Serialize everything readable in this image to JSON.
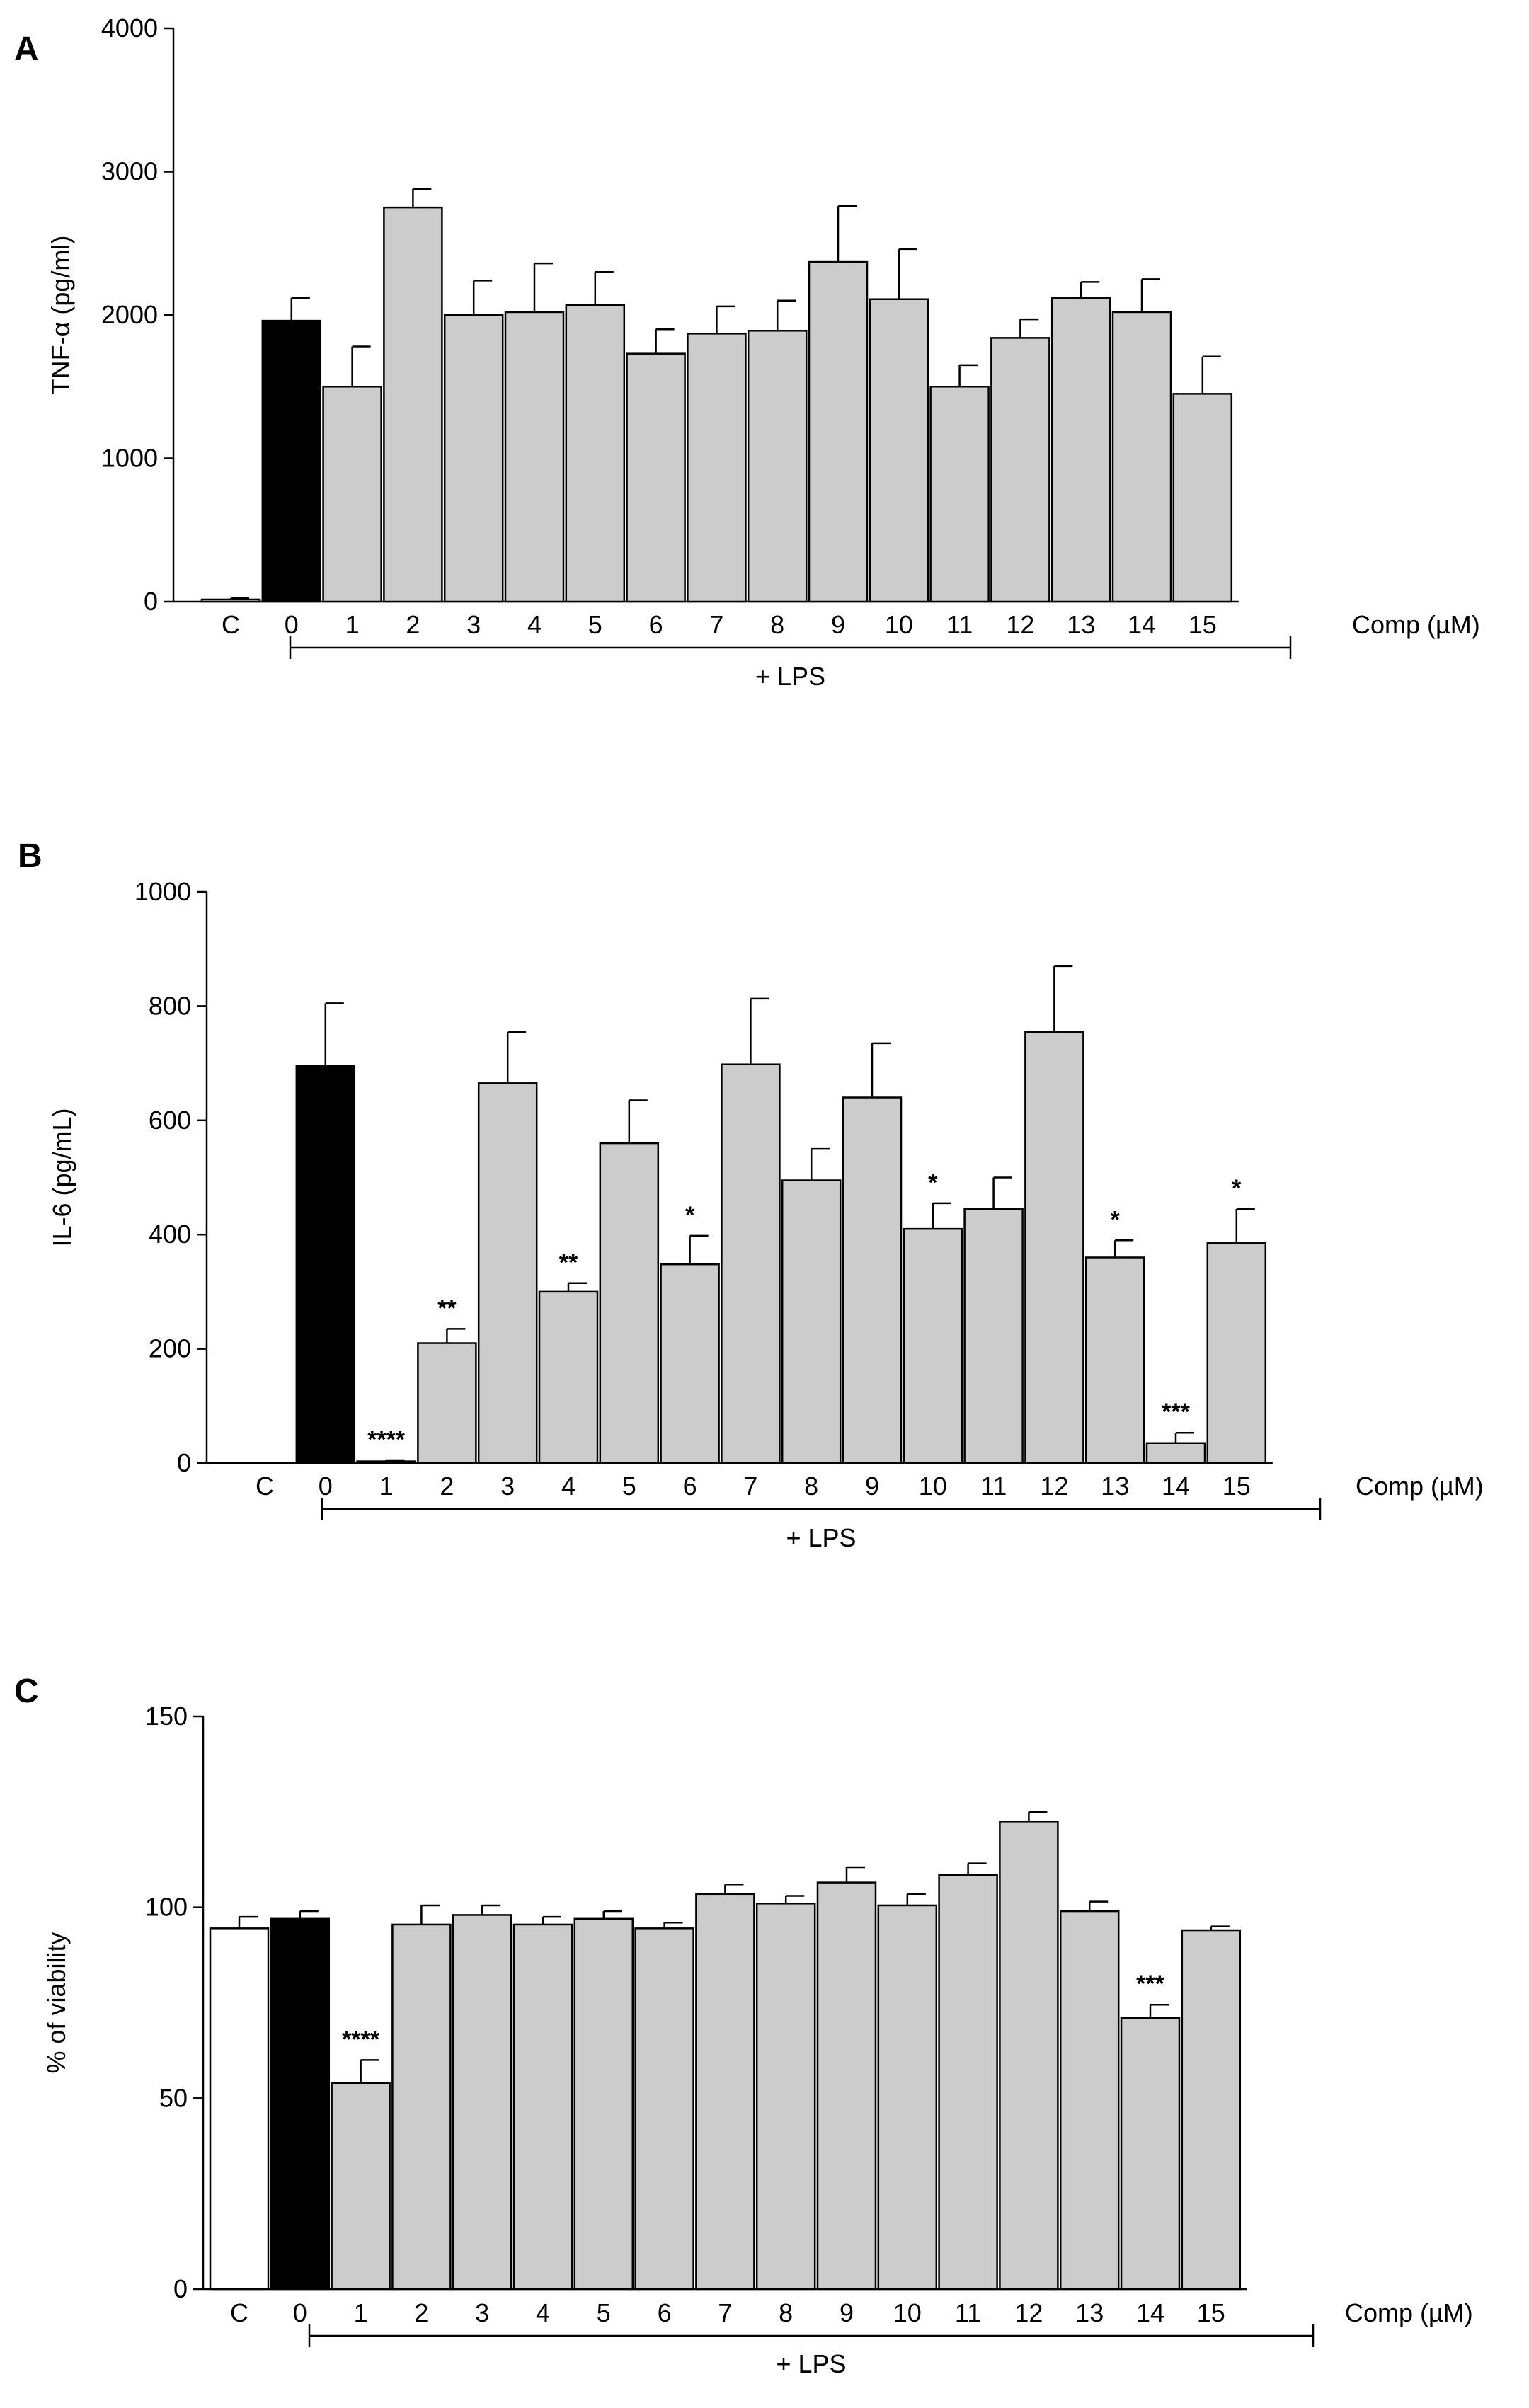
{
  "chart_data": [
    {
      "panel": "A",
      "type": "bar",
      "categories": [
        "C",
        "0",
        "1",
        "2",
        "3",
        "4",
        "5",
        "6",
        "7",
        "8",
        "9",
        "10",
        "11",
        "12",
        "13",
        "14",
        "15"
      ],
      "values": [
        15,
        1960,
        1500,
        2750,
        2000,
        2020,
        2070,
        1730,
        1870,
        1890,
        2370,
        2110,
        1500,
        1840,
        2120,
        2020,
        1450
      ],
      "errors": [
        10,
        160,
        280,
        130,
        240,
        340,
        230,
        170,
        190,
        210,
        390,
        350,
        150,
        130,
        110,
        230,
        260
      ],
      "colors": [
        "#ffffff",
        "#000000",
        "#cccccc",
        "#cccccc",
        "#cccccc",
        "#cccccc",
        "#cccccc",
        "#cccccc",
        "#cccccc",
        "#cccccc",
        "#cccccc",
        "#cccccc",
        "#cccccc",
        "#cccccc",
        "#cccccc",
        "#cccccc",
        "#cccccc"
      ],
      "significance": [
        "",
        "",
        "",
        "",
        "",
        "",
        "",
        "",
        "",
        "",
        "",
        "",
        "",
        "",
        "",
        "",
        ""
      ],
      "ylabel": "TNF-α (pg/ml)",
      "ylim": [
        0,
        4000
      ],
      "yticks": [
        "0",
        "1000",
        "2000",
        "3000",
        "4000"
      ],
      "xlabel": "Comp (µM)",
      "group_label": "+ LPS"
    },
    {
      "panel": "B",
      "type": "bar",
      "categories": [
        "C",
        "0",
        "1",
        "2",
        "3",
        "4",
        "5",
        "6",
        "7",
        "8",
        "9",
        "10",
        "11",
        "12",
        "13",
        "14",
        "15"
      ],
      "values": [
        0,
        695,
        3,
        210,
        665,
        300,
        560,
        348,
        698,
        495,
        640,
        410,
        445,
        755,
        360,
        35,
        385
      ],
      "errors": [
        0,
        110,
        2,
        25,
        90,
        15,
        75,
        50,
        115,
        55,
        95,
        45,
        55,
        115,
        30,
        18,
        60
      ],
      "colors": [
        "#ffffff",
        "#000000",
        "#cccccc",
        "#cccccc",
        "#cccccc",
        "#cccccc",
        "#cccccc",
        "#cccccc",
        "#cccccc",
        "#cccccc",
        "#cccccc",
        "#cccccc",
        "#cccccc",
        "#cccccc",
        "#cccccc",
        "#cccccc",
        "#cccccc"
      ],
      "significance": [
        "",
        "",
        "****",
        "**",
        "",
        "**",
        "",
        "*",
        "",
        "",
        "",
        "*",
        "",
        "",
        "*",
        "***",
        "*"
      ],
      "ylabel": "IL-6 (pg/mL)",
      "ylim": [
        0,
        1000
      ],
      "yticks": [
        "0",
        "200",
        "400",
        "600",
        "800",
        "1000"
      ],
      "xlabel": "Comp (µM)",
      "group_label": "+ LPS"
    },
    {
      "panel": "C",
      "type": "bar",
      "categories": [
        "C",
        "0",
        "1",
        "2",
        "3",
        "4",
        "5",
        "6",
        "7",
        "8",
        "9",
        "10",
        "11",
        "12",
        "13",
        "14",
        "15"
      ],
      "values": [
        94.5,
        97,
        54,
        95.5,
        98,
        95.5,
        97,
        94.5,
        103.5,
        101,
        106.5,
        100.5,
        108.5,
        122.5,
        99,
        71,
        94
      ],
      "errors": [
        3,
        2,
        6,
        5,
        2.5,
        2,
        2,
        1.5,
        2.5,
        2,
        4,
        3,
        3,
        2.5,
        2.5,
        3.5,
        1
      ],
      "colors": [
        "#ffffff",
        "#000000",
        "#cccccc",
        "#cccccc",
        "#cccccc",
        "#cccccc",
        "#cccccc",
        "#cccccc",
        "#cccccc",
        "#cccccc",
        "#cccccc",
        "#cccccc",
        "#cccccc",
        "#cccccc",
        "#cccccc",
        "#cccccc",
        "#cccccc"
      ],
      "significance": [
        "",
        "",
        "****",
        "",
        "",
        "",
        "",
        "",
        "",
        "",
        "",
        "",
        "",
        "",
        "",
        "***",
        ""
      ],
      "ylabel": "% of viability",
      "ylim": [
        0,
        150
      ],
      "yticks": [
        "0",
        "50",
        "100",
        "150"
      ],
      "xlabel": "Comp (µM)",
      "group_label": "+ LPS"
    }
  ]
}
